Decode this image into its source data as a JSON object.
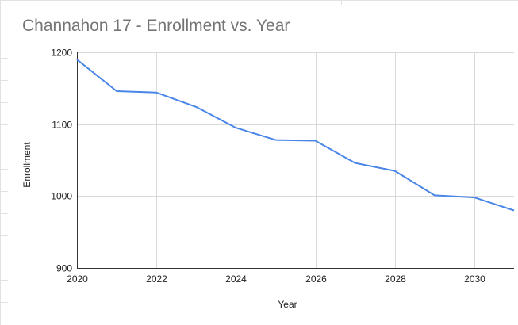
{
  "chart_data": {
    "type": "line",
    "title": "Channahon 17 - Enrollment vs. Year",
    "xlabel": "Year",
    "ylabel": "Enrollment",
    "xlim": [
      2020,
      2031
    ],
    "ylim": [
      900,
      1200
    ],
    "xticks": [
      "2020",
      "2022",
      "2024",
      "2026",
      "2028",
      "2030"
    ],
    "yticks": [
      "900",
      "1000",
      "1100",
      "1200"
    ],
    "grid": true,
    "legend": "none",
    "series": [
      {
        "color": "#4a86e8",
        "x": [
          2020,
          2021,
          2022,
          2023,
          2024,
          2025,
          2026,
          2027,
          2028,
          2029,
          2030,
          2031
        ],
        "y": [
          1190,
          1146,
          1144,
          1124,
          1095,
          1078,
          1077,
          1046,
          1035,
          1001,
          998,
          980
        ]
      }
    ]
  }
}
